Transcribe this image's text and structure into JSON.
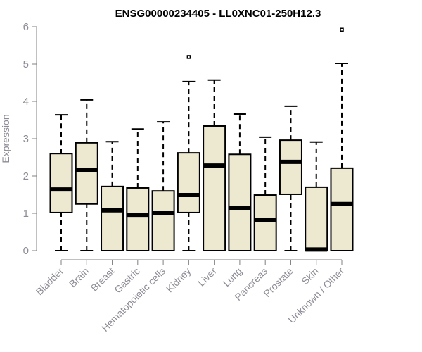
{
  "chart_data": {
    "type": "boxplot",
    "title": "ENSG00000234405 - LL0XNC01-250H12.3",
    "xlabel": "",
    "ylabel": "Expression",
    "ylim": [
      0,
      6
    ],
    "yticks": [
      "0",
      "1",
      "2",
      "3",
      "4",
      "5",
      "6"
    ],
    "grid": false,
    "colors": {
      "box_fill": "#ede8d0",
      "box_stroke": "#000000",
      "axis": "#808080"
    },
    "categories": [
      "Bladder",
      "Brain",
      "Breast",
      "Gastric",
      "Hematopoietic cells",
      "Kidney",
      "Liver",
      "Lung",
      "Pancreas",
      "Prostate",
      "Skin",
      "Unknown / Other"
    ],
    "boxes": [
      {
        "min": 0,
        "q1": 1.02,
        "median": 1.64,
        "q3": 2.6,
        "max": 3.64,
        "outliers": []
      },
      {
        "min": 0,
        "q1": 1.25,
        "median": 2.17,
        "q3": 2.89,
        "max": 4.04,
        "outliers": []
      },
      {
        "min": 0,
        "q1": 0,
        "median": 1.08,
        "q3": 1.72,
        "max": 2.92,
        "outliers": []
      },
      {
        "min": 0,
        "q1": 0,
        "median": 0.96,
        "q3": 1.68,
        "max": 3.26,
        "outliers": []
      },
      {
        "min": 0,
        "q1": 0,
        "median": 1.0,
        "q3": 1.6,
        "max": 3.45,
        "outliers": []
      },
      {
        "min": 0,
        "q1": 1.02,
        "median": 1.49,
        "q3": 2.62,
        "max": 4.53,
        "outliers": [
          5.19
        ]
      },
      {
        "min": 0,
        "q1": 0,
        "median": 2.28,
        "q3": 3.34,
        "max": 4.57,
        "outliers": []
      },
      {
        "min": 0,
        "q1": 0,
        "median": 1.15,
        "q3": 2.58,
        "max": 3.66,
        "outliers": []
      },
      {
        "min": 0,
        "q1": 0,
        "median": 0.83,
        "q3": 1.49,
        "max": 3.04,
        "outliers": []
      },
      {
        "min": 0,
        "q1": 1.51,
        "median": 2.38,
        "q3": 2.96,
        "max": 3.87,
        "outliers": []
      },
      {
        "min": 0,
        "q1": 0,
        "median": 0.03,
        "q3": 1.7,
        "max": 2.91,
        "outliers": []
      },
      {
        "min": 0,
        "q1": 0,
        "median": 1.25,
        "q3": 2.21,
        "max": 5.02,
        "outliers": [
          5.92
        ]
      }
    ]
  }
}
